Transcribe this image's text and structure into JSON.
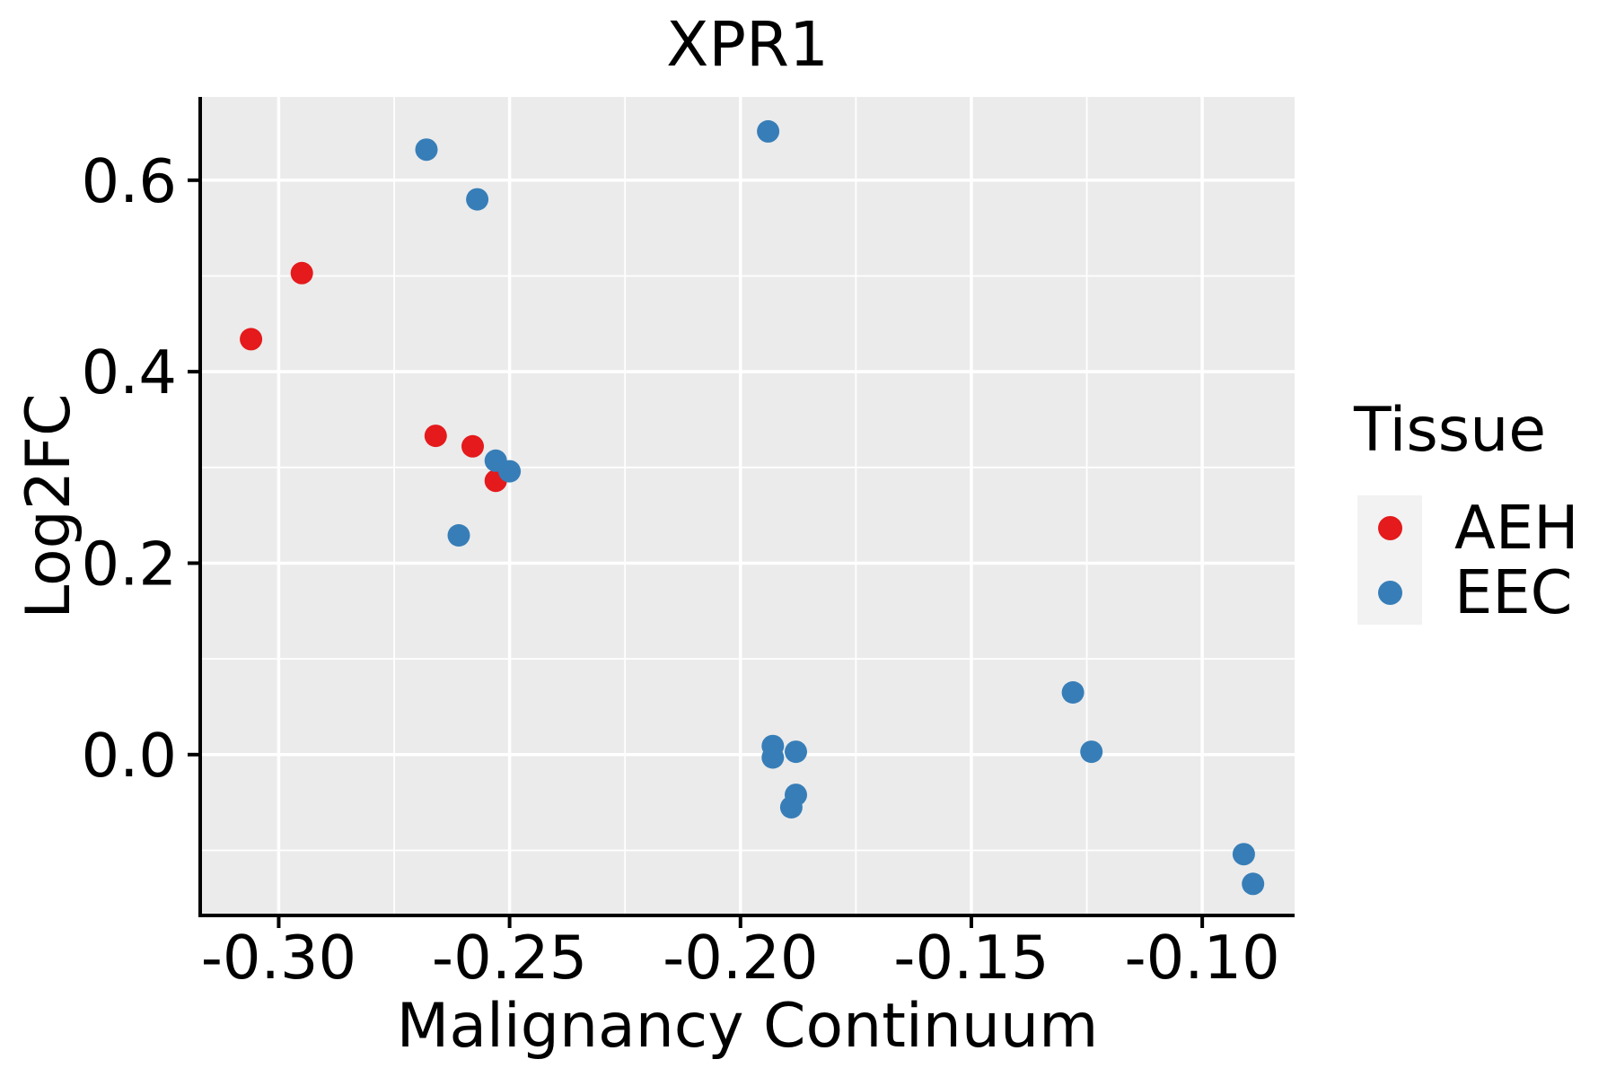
{
  "figure": {
    "title": "XPR1"
  },
  "chart_data": {
    "type": "scatter",
    "title": "XPR1",
    "xlabel": "Malignancy Continuum",
    "ylabel": "Log2FC",
    "xlim": [
      -0.317,
      -0.08
    ],
    "ylim": [
      -0.168,
      0.687
    ],
    "x_tick_values": [
      -0.3,
      -0.25,
      -0.2,
      -0.15,
      -0.1
    ],
    "x_tick_labels": [
      "-0.30",
      "-0.25",
      "-0.20",
      "-0.15",
      "-0.10"
    ],
    "y_tick_values": [
      0.0,
      0.2,
      0.4,
      0.6
    ],
    "y_tick_labels": [
      "0.0",
      "0.2",
      "0.4",
      "0.6"
    ],
    "x_minor_tick_values": [
      -0.275,
      -0.225,
      -0.175,
      -0.125
    ],
    "y_minor_tick_values": [
      -0.1,
      0.1,
      0.3,
      0.5
    ],
    "grid": "on",
    "panel_bg": "#ebebeb",
    "grid_color": "#ffffff",
    "axis_color": "#000000",
    "point_radius": 12.5,
    "legend": {
      "title": "Tissue",
      "position": "right"
    },
    "series": [
      {
        "name": "AEH",
        "color": "#e41a1c",
        "points": [
          [
            -0.306,
            0.434
          ],
          [
            -0.295,
            0.503
          ],
          [
            -0.266,
            0.333
          ],
          [
            -0.258,
            0.322
          ],
          [
            -0.253,
            0.286
          ]
        ]
      },
      {
        "name": "EEC",
        "color": "#377eb8",
        "points": [
          [
            -0.268,
            0.632
          ],
          [
            -0.257,
            0.58
          ],
          [
            -0.261,
            0.229
          ],
          [
            -0.253,
            0.307
          ],
          [
            -0.25,
            0.296
          ],
          [
            -0.194,
            0.651
          ],
          [
            -0.193,
            0.009
          ],
          [
            -0.193,
            -0.003
          ],
          [
            -0.188,
            0.003
          ],
          [
            -0.188,
            -0.042
          ],
          [
            -0.189,
            -0.055
          ],
          [
            -0.128,
            0.065
          ],
          [
            -0.124,
            0.003
          ],
          [
            -0.091,
            -0.104
          ],
          [
            -0.089,
            -0.135
          ]
        ]
      }
    ]
  }
}
